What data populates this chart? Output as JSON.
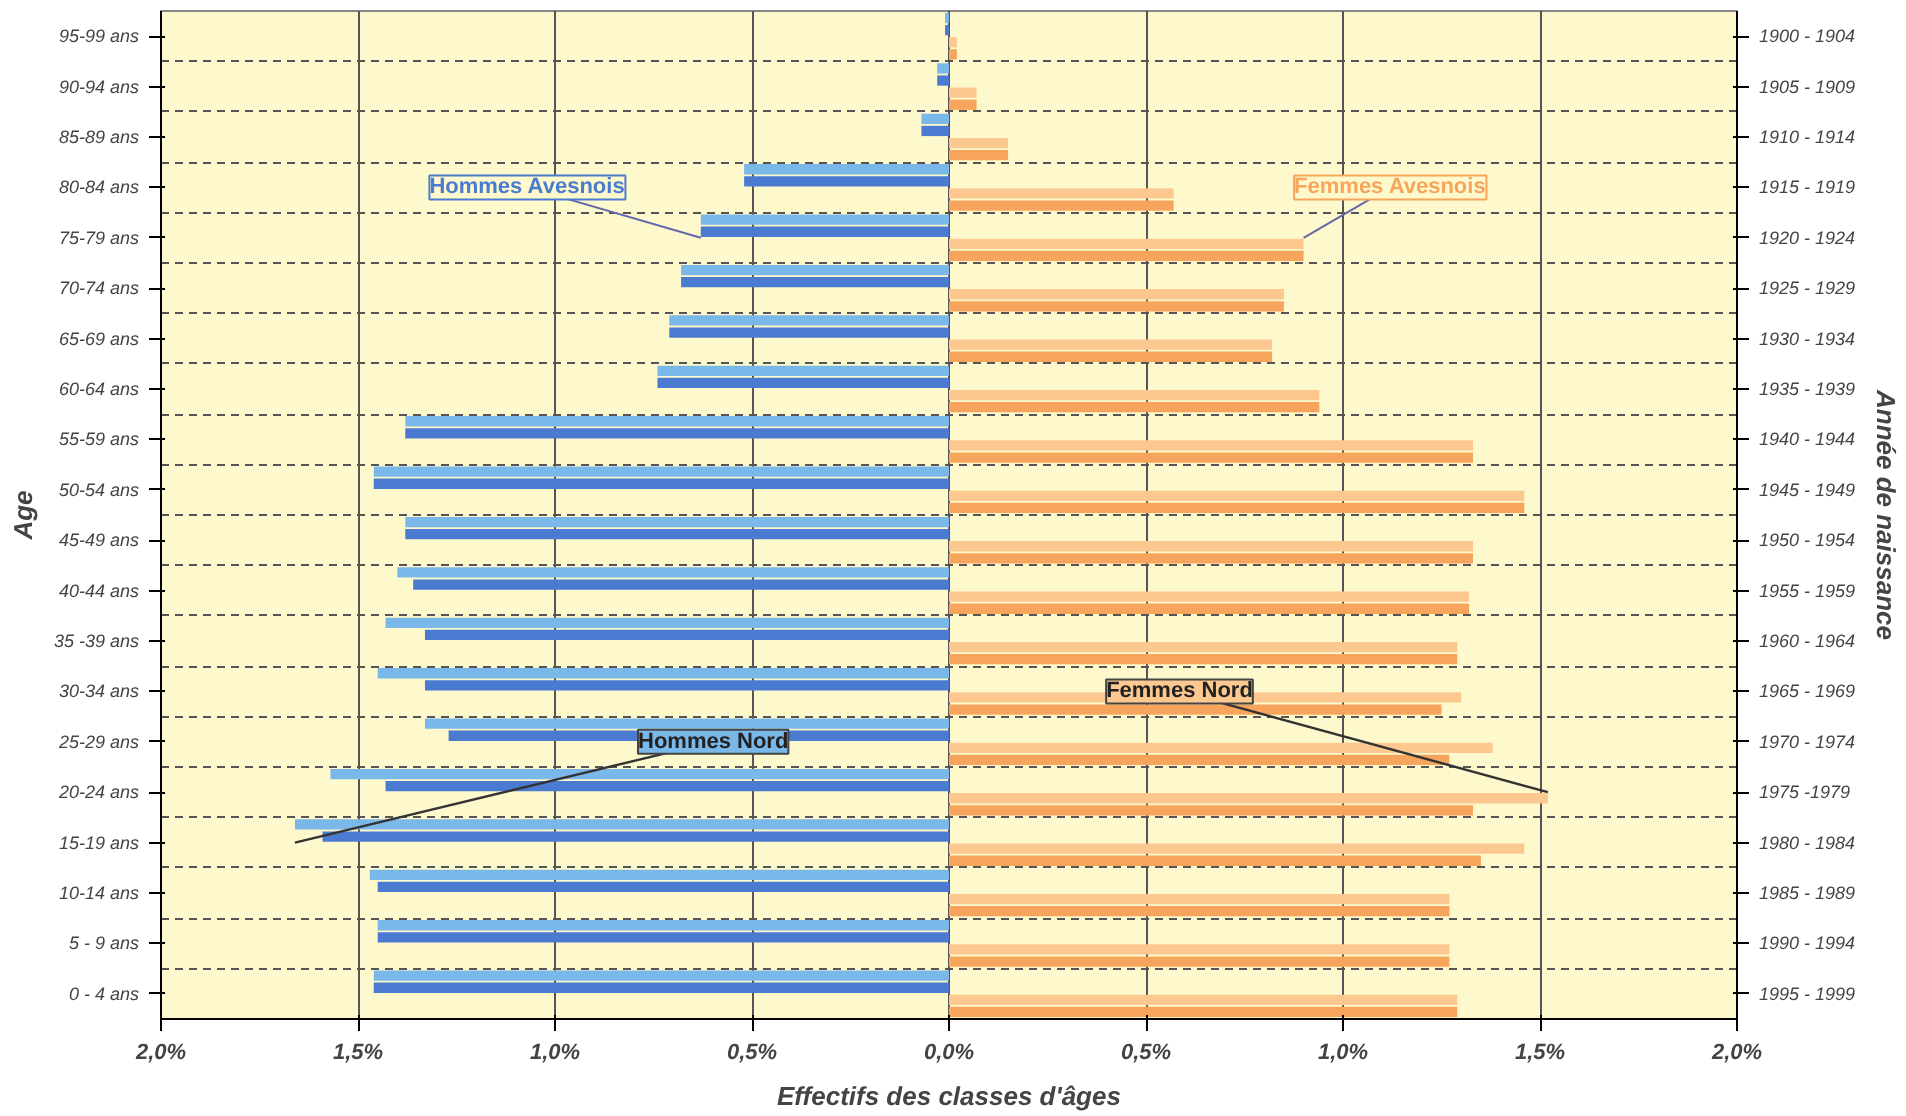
{
  "chart_data": {
    "type": "bar",
    "orientation": "horizontal",
    "xlabel": "Effectifs des classes d'âges",
    "ylabel": "Age",
    "y2label": "Année de naissance",
    "categories": [
      "95-99 ans",
      "90-94 ans",
      "85-89 ans",
      "80-84 ans",
      "75-79 ans",
      "70-74 ans",
      "65-69 ans",
      "60-64 ans",
      "55-59 ans",
      "50-54 ans",
      "45-49 ans",
      "40-44 ans",
      "35 -39 ans",
      "30-34 ans",
      "25-29 ans",
      "20-24 ans",
      "15-19 ans",
      "10-14 ans",
      "5 - 9 ans",
      "0 - 4 ans"
    ],
    "y2_categories": [
      "1900 - 1904",
      "1905 - 1909",
      "1910 - 1914",
      "1915 - 1919",
      "1920 - 1924",
      "1925 - 1929",
      "1930 - 1934",
      "1935 - 1939",
      "1940 - 1944",
      "1945 - 1949",
      "1950 - 1954",
      "1955 - 1959",
      "1960 - 1964",
      "1965 - 1969",
      "1970 - 1974",
      "1975 -1979",
      "1980 - 1984",
      "1985 - 1989",
      "1990 - 1994",
      "1995 - 1999"
    ],
    "series": [
      {
        "name": "Hommes Nord",
        "color": "#7ab8ea",
        "values": [
          -0.01,
          -0.03,
          -0.07,
          -0.52,
          -0.63,
          -0.68,
          -0.71,
          -0.74,
          -1.38,
          -1.46,
          -1.38,
          -1.4,
          -1.43,
          -1.45,
          -1.33,
          -1.57,
          -1.66,
          -1.47,
          -1.45,
          -1.46
        ]
      },
      {
        "name": "Hommes Avesnois",
        "color": "#4a7bd0",
        "values": [
          -0.01,
          -0.03,
          -0.07,
          -0.52,
          -0.63,
          -0.68,
          -0.71,
          -0.74,
          -1.38,
          -1.46,
          -1.38,
          -1.36,
          -1.33,
          -1.33,
          -1.27,
          -1.43,
          -1.59,
          -1.45,
          -1.45,
          -1.46
        ]
      },
      {
        "name": "Femmes Nord",
        "color": "#fcc890",
        "values": [
          0.02,
          0.07,
          0.15,
          0.57,
          0.9,
          0.85,
          0.82,
          0.94,
          1.33,
          1.46,
          1.33,
          1.32,
          1.29,
          1.3,
          1.38,
          1.52,
          1.46,
          1.27,
          1.27,
          1.29
        ]
      },
      {
        "name": "Femmes Avesnois",
        "color": "#f7a55c",
        "values": [
          0.02,
          0.07,
          0.15,
          0.57,
          0.9,
          0.85,
          0.82,
          0.94,
          1.33,
          1.46,
          1.33,
          1.32,
          1.29,
          1.25,
          1.27,
          1.33,
          1.35,
          1.27,
          1.27,
          1.29
        ]
      }
    ],
    "xlim": [
      -2,
      2
    ],
    "xticks": [
      {
        "value": -2,
        "label": "2,0%"
      },
      {
        "value": -1.5,
        "label": "1,5%"
      },
      {
        "value": -1,
        "label": "1,0%"
      },
      {
        "value": -0.5,
        "label": "0,5%"
      },
      {
        "value": 0,
        "label": "0,0%"
      },
      {
        "value": 0.5,
        "label": "0,5%"
      },
      {
        "value": 1,
        "label": "1,0%"
      },
      {
        "value": 1.5,
        "label": "1,5%"
      },
      {
        "value": 2,
        "label": "2,0%"
      }
    ],
    "grid": true
  }
}
